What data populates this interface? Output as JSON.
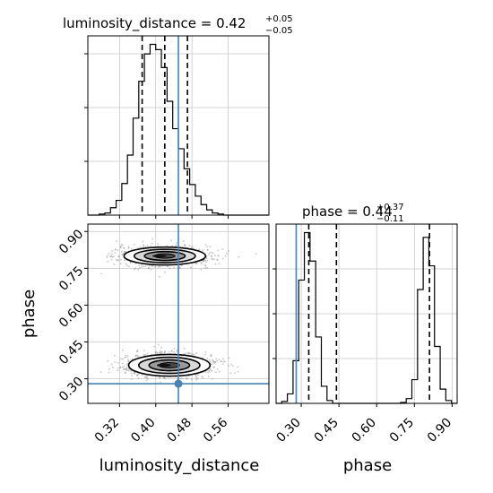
{
  "chart_data": {
    "type": "corner",
    "parameters": [
      "luminosity_distance",
      "phase"
    ],
    "truths": {
      "luminosity_distance": 0.45,
      "phase": 0.28
    },
    "truth_color": "#4682b4",
    "panels": [
      {
        "type": "histogram",
        "parameter": "luminosity_distance",
        "title": {
          "label": "luminosity_distance",
          "median": "0.42",
          "upper": "+0.05",
          "lower": "−0.05"
        },
        "quantiles": [
          0.37,
          0.42,
          0.47
        ],
        "bin_edges": [
          0.25,
          0.2625,
          0.275,
          0.2875,
          0.3,
          0.3125,
          0.325,
          0.3375,
          0.35,
          0.3625,
          0.375,
          0.3875,
          0.4,
          0.4125,
          0.425,
          0.4375,
          0.45,
          0.4625,
          0.475,
          0.4875,
          0.5,
          0.5125,
          0.525,
          0.5375,
          0.55,
          0.5625,
          0.575,
          0.5875,
          0.6,
          0.6125,
          0.625,
          0.6375,
          0.65
        ],
        "counts": [
          0,
          0,
          1,
          2,
          7,
          14,
          30,
          57,
          92,
          127,
          153,
          162,
          157,
          140,
          108,
          82,
          63,
          44,
          29,
          18,
          10,
          5,
          2,
          1,
          0,
          0,
          0,
          0,
          0,
          0,
          0,
          0
        ],
        "xlim": [
          0.25,
          0.65
        ],
        "xticks": [
          0.32,
          0.4,
          0.48,
          0.56
        ]
      },
      {
        "type": "density2d",
        "x": "luminosity_distance",
        "y": "phase",
        "xlim": [
          0.25,
          0.65
        ],
        "ylim": [
          0.2,
          0.93
        ],
        "xticks": [
          "0.32",
          "0.40",
          "0.48",
          "0.56"
        ],
        "yticks": [
          "0.30",
          "0.45",
          "0.60",
          "0.75",
          "0.90"
        ],
        "modes": [
          {
            "x_center": 0.42,
            "y_center": 0.8,
            "x_sigma": 0.045,
            "y_sigma": 0.018
          },
          {
            "x_center": 0.43,
            "y_center": 0.355,
            "x_sigma": 0.045,
            "y_sigma": 0.022
          }
        ]
      },
      {
        "type": "histogram",
        "parameter": "phase",
        "title": {
          "label": "phase",
          "median": "0.44",
          "upper": "+0.37",
          "lower": "−0.11"
        },
        "quantiles": [
          0.33,
          0.44,
          0.81
        ],
        "bin_edges": [
          0.2,
          0.2225,
          0.245,
          0.2675,
          0.29,
          0.3125,
          0.335,
          0.3575,
          0.38,
          0.4025,
          0.425,
          0.4475,
          0.47,
          0.4925,
          0.515,
          0.5375,
          0.56,
          0.5825,
          0.605,
          0.6275,
          0.65,
          0.6725,
          0.695,
          0.7175,
          0.74,
          0.7625,
          0.785,
          0.8075,
          0.83,
          0.8525,
          0.875,
          0.8975,
          0.92
        ],
        "counts": [
          0,
          2,
          10,
          45,
          130,
          180,
          150,
          70,
          18,
          3,
          0,
          0,
          0,
          0,
          0,
          0,
          0,
          0,
          0,
          0,
          0,
          0,
          1,
          5,
          25,
          120,
          175,
          145,
          60,
          15,
          3,
          0
        ],
        "xlim": [
          0.2,
          0.92
        ],
        "xticks": [
          "0.30",
          "0.45",
          "0.60",
          "0.75",
          "0.90"
        ]
      }
    ],
    "xlabels": [
      "luminosity_distance",
      "phase"
    ],
    "ylabels": [
      "",
      "phase"
    ],
    "grid": true
  }
}
